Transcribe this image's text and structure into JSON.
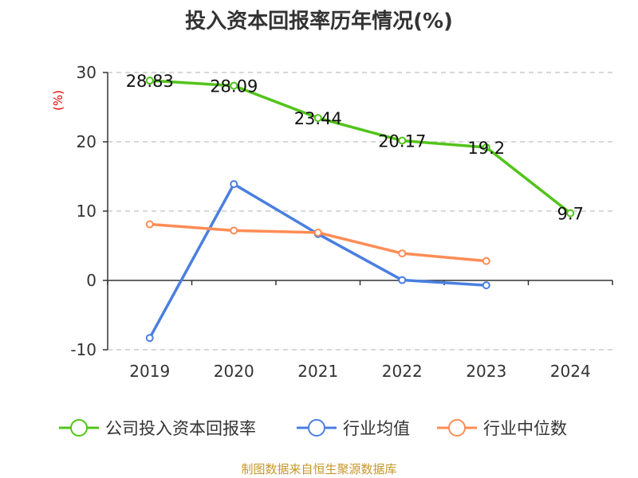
{
  "chart_data": {
    "type": "line",
    "title": "投入资本回报率历年情况(%)",
    "ylabel": "(%)",
    "xlabel": "",
    "categories": [
      "2019",
      "2020",
      "2021",
      "2022",
      "2023",
      "2024"
    ],
    "ylim": [
      -10,
      30
    ],
    "yticks": [
      -10,
      0,
      10,
      20,
      30
    ],
    "grid": true,
    "legend_position": "bottom",
    "series": [
      {
        "name": "公司投入资本回报率",
        "color": "#52c41a",
        "values": [
          28.83,
          28.09,
          23.44,
          20.17,
          19.2,
          9.7
        ],
        "labels": [
          "28.83",
          "28.09",
          "23.44",
          "20.17",
          "19.2",
          "9.7"
        ]
      },
      {
        "name": "行业均值",
        "color": "#4a7fe0",
        "values": [
          -8.3,
          13.9,
          6.7,
          0.05,
          -0.7,
          null
        ]
      },
      {
        "name": "行业中位数",
        "color": "#ff8c55",
        "values": [
          8.1,
          7.2,
          6.9,
          3.9,
          2.8,
          null
        ]
      }
    ]
  },
  "footer": "制图数据来自恒生聚源数据库"
}
